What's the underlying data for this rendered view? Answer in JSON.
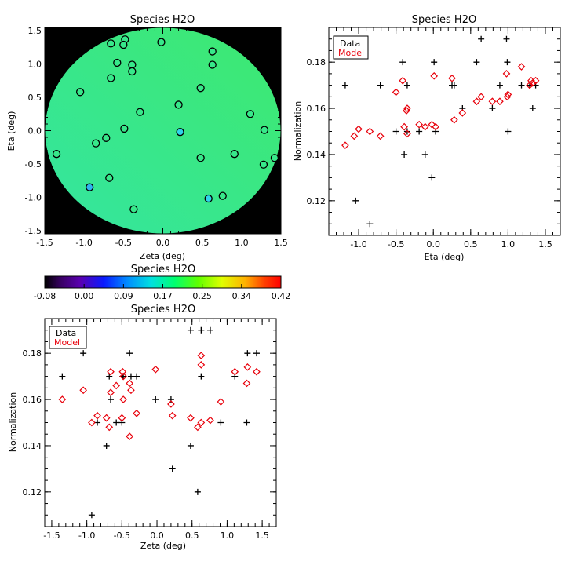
{
  "map_panel": {
    "title": "Species H2O",
    "xlabel": "Zeta (deg)",
    "ylabel": "Eta (deg)",
    "xticks": [
      "-1.5",
      "-1.0",
      "-0.5",
      "0.0",
      "0.5",
      "1.0",
      "1.5"
    ],
    "yticks": [
      "-1.5",
      "-1.0",
      "-0.5",
      "0.0",
      "0.5",
      "1.0",
      "1.5"
    ],
    "background_color": "#000000",
    "field_color": "#37e88a"
  },
  "colorbar": {
    "title": "Species H2O",
    "ticks": [
      "-0.08",
      "0.00",
      "0.09",
      "0.17",
      "0.25",
      "0.34",
      "0.42"
    ]
  },
  "eta_panel": {
    "title": "Species H2O",
    "xlabel": "Eta (deg)",
    "ylabel": "Normalization",
    "xticks": [
      "-1.0",
      "-0.5",
      "0.0",
      "0.5",
      "1.0",
      "1.5"
    ],
    "yticks": [
      "0.12",
      "0.14",
      "0.16",
      "0.18"
    ],
    "legend": [
      "Data",
      "Model"
    ]
  },
  "zeta_panel": {
    "title": "Species H2O",
    "xlabel": "Zeta (deg)",
    "ylabel": "Normalization",
    "xticks": [
      "-1.5",
      "-1.0",
      "-0.5",
      "0.0",
      "0.5",
      "1.0",
      "1.5"
    ],
    "yticks": [
      "0.12",
      "0.14",
      "0.16",
      "0.18"
    ],
    "legend": [
      "Data",
      "Model"
    ]
  },
  "chart_data": [
    {
      "type": "scatter",
      "name": "map",
      "title": "Species H2O",
      "xlabel": "Zeta (deg)",
      "ylabel": "Eta (deg)",
      "xlim": [
        -1.5,
        1.5
      ],
      "ylim": [
        -1.55,
        1.55
      ],
      "circle_points": [
        {
          "x": -0.48,
          "y": 1.37,
          "c": "#37e88a"
        },
        {
          "x": -0.02,
          "y": 1.33,
          "c": "#37e88a"
        },
        {
          "x": -0.5,
          "y": 1.29,
          "c": "#37e88a"
        },
        {
          "x": -0.66,
          "y": 1.31,
          "c": "#37e88a"
        },
        {
          "x": 0.63,
          "y": 1.19,
          "c": "#37e88a"
        },
        {
          "x": -0.58,
          "y": 1.02,
          "c": "#37e88a"
        },
        {
          "x": -0.39,
          "y": 0.99,
          "c": "#37e88a"
        },
        {
          "x": 0.63,
          "y": 0.99,
          "c": "#37e88a"
        },
        {
          "x": -0.39,
          "y": 0.89,
          "c": "#37e88a"
        },
        {
          "x": -0.66,
          "y": 0.79,
          "c": "#37e88a"
        },
        {
          "x": 0.48,
          "y": 0.64,
          "c": "#37e88a"
        },
        {
          "x": -1.05,
          "y": 0.58,
          "c": "#37e88a"
        },
        {
          "x": 0.2,
          "y": 0.39,
          "c": "#37e88a"
        },
        {
          "x": -0.29,
          "y": 0.28,
          "c": "#37e88a"
        },
        {
          "x": 1.11,
          "y": 0.25,
          "c": "#37e88a"
        },
        {
          "x": -0.49,
          "y": 0.03,
          "c": "#37e88a"
        },
        {
          "x": 0.22,
          "y": -0.02,
          "c": "#2fd4ea"
        },
        {
          "x": 1.29,
          "y": 0.01,
          "c": "#37e88a"
        },
        {
          "x": -0.72,
          "y": -0.11,
          "c": "#37e88a"
        },
        {
          "x": -0.85,
          "y": -0.19,
          "c": "#37e88a"
        },
        {
          "x": -1.35,
          "y": -0.35,
          "c": "#37e88a"
        },
        {
          "x": 0.91,
          "y": -0.35,
          "c": "#37e88a"
        },
        {
          "x": 0.48,
          "y": -0.41,
          "c": "#37e88a"
        },
        {
          "x": 1.28,
          "y": -0.51,
          "c": "#37e88a"
        },
        {
          "x": 1.42,
          "y": -0.41,
          "c": "#37e88a"
        },
        {
          "x": -0.68,
          "y": -0.71,
          "c": "#37e88a"
        },
        {
          "x": -0.93,
          "y": -0.85,
          "c": "#2fb2f0"
        },
        {
          "x": 0.76,
          "y": -0.98,
          "c": "#37e88a"
        },
        {
          "x": 0.58,
          "y": -1.02,
          "c": "#2fd4ea"
        },
        {
          "x": -0.37,
          "y": -1.18,
          "c": "#37e88a"
        }
      ]
    },
    {
      "type": "scatter",
      "name": "eta",
      "title": "Species H2O",
      "xlabel": "Eta (deg)",
      "ylabel": "Normalization",
      "xlim": [
        -1.4,
        1.7
      ],
      "ylim": [
        0.105,
        0.195
      ],
      "series": [
        {
          "name": "Data",
          "marker": "plus",
          "color": "#000000",
          "points": [
            {
              "x": -1.18,
              "y": 0.17
            },
            {
              "x": -1.04,
              "y": 0.12
            },
            {
              "x": -0.85,
              "y": 0.11
            },
            {
              "x": -0.71,
              "y": 0.17
            },
            {
              "x": -0.5,
              "y": 0.15
            },
            {
              "x": -0.41,
              "y": 0.18
            },
            {
              "x": -0.39,
              "y": 0.14
            },
            {
              "x": -0.35,
              "y": 0.17
            },
            {
              "x": -0.35,
              "y": 0.15
            },
            {
              "x": -0.19,
              "y": 0.15
            },
            {
              "x": -0.11,
              "y": 0.14
            },
            {
              "x": -0.02,
              "y": 0.13
            },
            {
              "x": 0.01,
              "y": 0.18
            },
            {
              "x": 0.03,
              "y": 0.15
            },
            {
              "x": 0.25,
              "y": 0.17
            },
            {
              "x": 0.28,
              "y": 0.17
            },
            {
              "x": 0.39,
              "y": 0.16
            },
            {
              "x": 0.58,
              "y": 0.18
            },
            {
              "x": 0.64,
              "y": 0.19
            },
            {
              "x": 0.79,
              "y": 0.16
            },
            {
              "x": 0.89,
              "y": 0.17
            },
            {
              "x": 0.98,
              "y": 0.19
            },
            {
              "x": 0.99,
              "y": 0.18
            },
            {
              "x": 1.0,
              "y": 0.15
            },
            {
              "x": 1.18,
              "y": 0.17
            },
            {
              "x": 1.29,
              "y": 0.17
            },
            {
              "x": 1.33,
              "y": 0.16
            },
            {
              "x": 1.37,
              "y": 0.17
            }
          ]
        },
        {
          "name": "Model",
          "marker": "diamond",
          "color": "#e8000b",
          "points": [
            {
              "x": -1.18,
              "y": 0.144
            },
            {
              "x": -1.06,
              "y": 0.148
            },
            {
              "x": -1.0,
              "y": 0.151
            },
            {
              "x": -0.85,
              "y": 0.15
            },
            {
              "x": -0.71,
              "y": 0.148
            },
            {
              "x": -0.5,
              "y": 0.167
            },
            {
              "x": -0.41,
              "y": 0.172
            },
            {
              "x": -0.39,
              "y": 0.152
            },
            {
              "x": -0.36,
              "y": 0.159
            },
            {
              "x": -0.35,
              "y": 0.16
            },
            {
              "x": -0.35,
              "y": 0.149
            },
            {
              "x": -0.19,
              "y": 0.153
            },
            {
              "x": -0.11,
              "y": 0.152
            },
            {
              "x": -0.02,
              "y": 0.153
            },
            {
              "x": 0.01,
              "y": 0.174
            },
            {
              "x": 0.03,
              "y": 0.152
            },
            {
              "x": 0.25,
              "y": 0.173
            },
            {
              "x": 0.28,
              "y": 0.155
            },
            {
              "x": 0.39,
              "y": 0.158
            },
            {
              "x": 0.58,
              "y": 0.163
            },
            {
              "x": 0.64,
              "y": 0.165
            },
            {
              "x": 0.79,
              "y": 0.163
            },
            {
              "x": 0.89,
              "y": 0.163
            },
            {
              "x": 0.98,
              "y": 0.175
            },
            {
              "x": 0.99,
              "y": 0.165
            },
            {
              "x": 1.0,
              "y": 0.166
            },
            {
              "x": 1.18,
              "y": 0.178
            },
            {
              "x": 1.29,
              "y": 0.17
            },
            {
              "x": 1.31,
              "y": 0.172
            },
            {
              "x": 1.33,
              "y": 0.171
            },
            {
              "x": 1.37,
              "y": 0.172
            }
          ]
        }
      ]
    },
    {
      "type": "scatter",
      "name": "zeta",
      "title": "Species H2O",
      "xlabel": "Zeta (deg)",
      "ylabel": "Normalization",
      "xlim": [
        -1.6,
        1.7
      ],
      "ylim": [
        0.105,
        0.195
      ],
      "series": [
        {
          "name": "Data",
          "marker": "plus",
          "color": "#000000",
          "points": [
            {
              "x": -1.35,
              "y": 0.17
            },
            {
              "x": -1.05,
              "y": 0.18
            },
            {
              "x": -0.93,
              "y": 0.11
            },
            {
              "x": -0.85,
              "y": 0.15
            },
            {
              "x": -0.72,
              "y": 0.14
            },
            {
              "x": -0.68,
              "y": 0.17
            },
            {
              "x": -0.66,
              "y": 0.16
            },
            {
              "x": -0.58,
              "y": 0.15
            },
            {
              "x": -0.5,
              "y": 0.15
            },
            {
              "x": -0.49,
              "y": 0.17
            },
            {
              "x": -0.48,
              "y": 0.17
            },
            {
              "x": -0.39,
              "y": 0.18
            },
            {
              "x": -0.37,
              "y": 0.17
            },
            {
              "x": -0.29,
              "y": 0.17
            },
            {
              "x": -0.02,
              "y": 0.16
            },
            {
              "x": 0.2,
              "y": 0.16
            },
            {
              "x": 0.22,
              "y": 0.13
            },
            {
              "x": 0.48,
              "y": 0.19
            },
            {
              "x": 0.48,
              "y": 0.14
            },
            {
              "x": 0.58,
              "y": 0.12
            },
            {
              "x": 0.63,
              "y": 0.19
            },
            {
              "x": 0.63,
              "y": 0.17
            },
            {
              "x": 0.76,
              "y": 0.19
            },
            {
              "x": 0.91,
              "y": 0.15
            },
            {
              "x": 1.11,
              "y": 0.17
            },
            {
              "x": 1.28,
              "y": 0.15
            },
            {
              "x": 1.29,
              "y": 0.18
            },
            {
              "x": 1.42,
              "y": 0.18
            }
          ]
        },
        {
          "name": "Model",
          "marker": "diamond",
          "color": "#e8000b",
          "points": [
            {
              "x": -1.35,
              "y": 0.16
            },
            {
              "x": -1.05,
              "y": 0.164
            },
            {
              "x": -0.93,
              "y": 0.15
            },
            {
              "x": -0.85,
              "y": 0.153
            },
            {
              "x": -0.72,
              "y": 0.152
            },
            {
              "x": -0.68,
              "y": 0.148
            },
            {
              "x": -0.66,
              "y": 0.172
            },
            {
              "x": -0.66,
              "y": 0.163
            },
            {
              "x": -0.58,
              "y": 0.166
            },
            {
              "x": -0.5,
              "y": 0.152
            },
            {
              "x": -0.49,
              "y": 0.172
            },
            {
              "x": -0.48,
              "y": 0.17
            },
            {
              "x": -0.48,
              "y": 0.16
            },
            {
              "x": -0.39,
              "y": 0.167
            },
            {
              "x": -0.39,
              "y": 0.144
            },
            {
              "x": -0.37,
              "y": 0.164
            },
            {
              "x": -0.29,
              "y": 0.154
            },
            {
              "x": -0.02,
              "y": 0.173
            },
            {
              "x": 0.2,
              "y": 0.158
            },
            {
              "x": 0.22,
              "y": 0.153
            },
            {
              "x": 0.48,
              "y": 0.152
            },
            {
              "x": 0.58,
              "y": 0.148
            },
            {
              "x": 0.63,
              "y": 0.179
            },
            {
              "x": 0.63,
              "y": 0.175
            },
            {
              "x": 0.63,
              "y": 0.15
            },
            {
              "x": 0.76,
              "y": 0.151
            },
            {
              "x": 0.91,
              "y": 0.159
            },
            {
              "x": 1.11,
              "y": 0.172
            },
            {
              "x": 1.28,
              "y": 0.167
            },
            {
              "x": 1.29,
              "y": 0.174
            },
            {
              "x": 1.42,
              "y": 0.172
            }
          ]
        }
      ]
    }
  ]
}
